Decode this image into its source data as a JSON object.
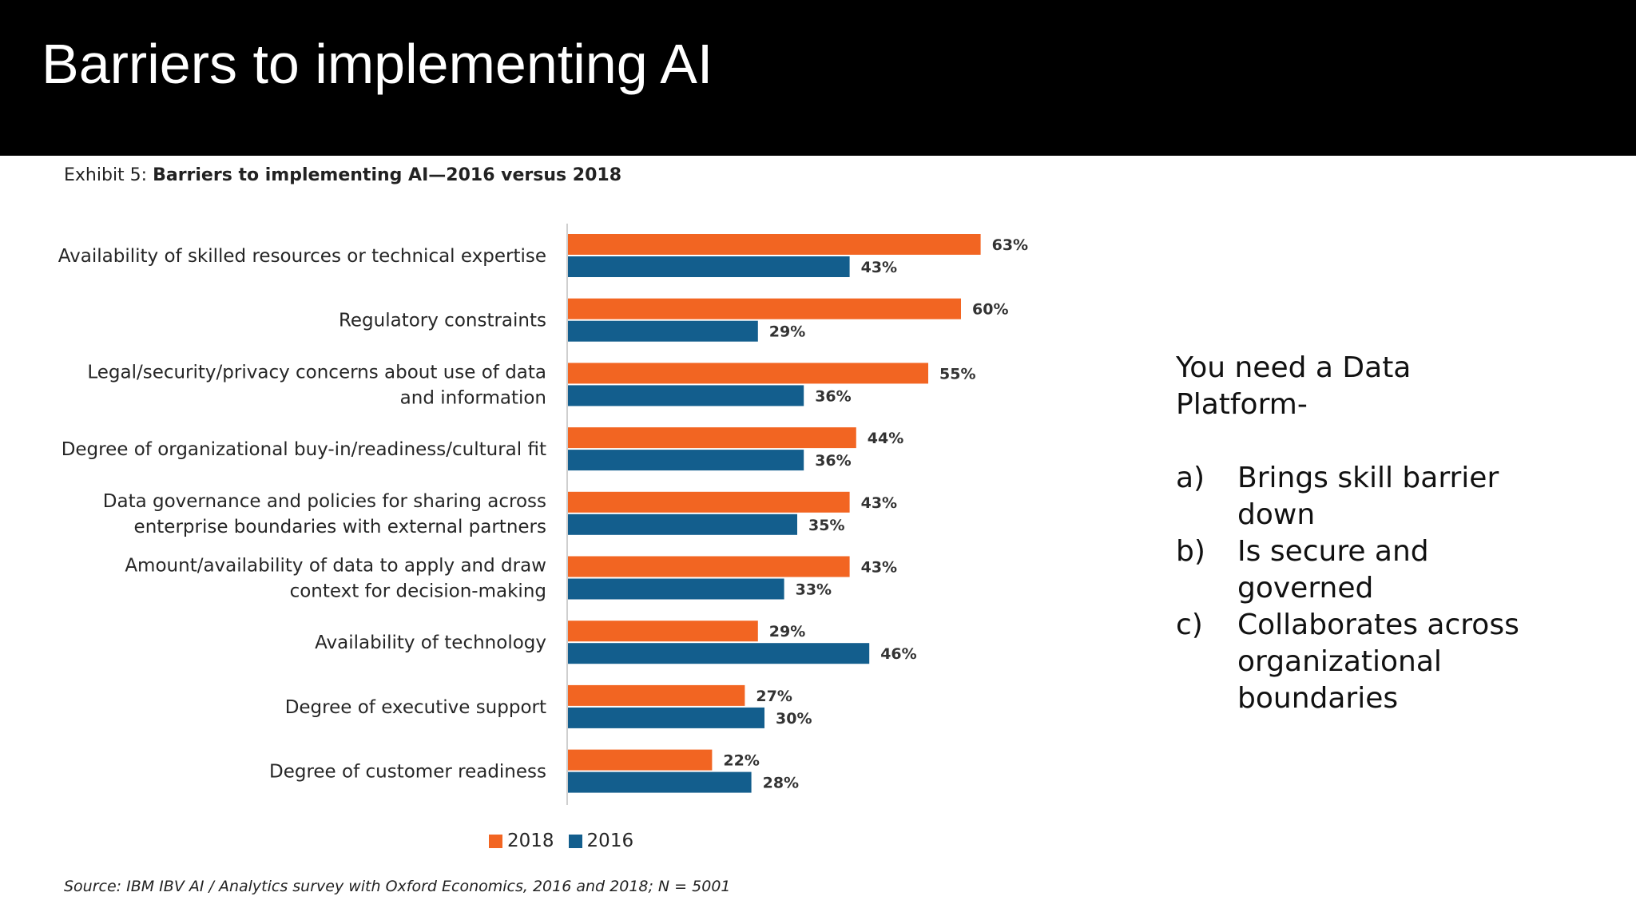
{
  "slide": {
    "title": "Barriers to implementing AI"
  },
  "exhibit": {
    "prefix": "Exhibit 5: ",
    "title": "Barriers to implementing AI—2016 versus 2018"
  },
  "source": "Source: IBM IBV AI / Analytics survey with Oxford Economics, 2016 and 2018; N = 5001",
  "colors": {
    "series_2018": "#f26522",
    "series_2016": "#135e8d"
  },
  "side_panel": {
    "heading": "You need a Data Platform-",
    "items": [
      {
        "marker": "a)",
        "text": "Brings skill barrier down"
      },
      {
        "marker": "b)",
        "text": "Is secure and governed"
      },
      {
        "marker": "c)",
        "text": "Collaborates across organizational boundaries"
      }
    ]
  },
  "chart_data": {
    "type": "bar",
    "orientation": "horizontal",
    "title": "Barriers to implementing AI—2016 versus 2018",
    "categories": [
      [
        "Availability of skilled resources or technical expertise"
      ],
      [
        "Regulatory constraints"
      ],
      [
        "Legal/security/privacy concerns about use of data",
        "and information"
      ],
      [
        "Degree of organizational buy-in/readiness/cultural fit"
      ],
      [
        "Data governance and policies for sharing across",
        "enterprise boundaries with external partners"
      ],
      [
        "Amount/availability of data to apply and draw",
        "context for decision-making"
      ],
      [
        "Availability of technology"
      ],
      [
        "Degree of executive support"
      ],
      [
        "Degree of customer readiness"
      ]
    ],
    "series": [
      {
        "name": "2018",
        "values": [
          63,
          60,
          55,
          44,
          43,
          43,
          29,
          27,
          22
        ]
      },
      {
        "name": "2016",
        "values": [
          43,
          29,
          36,
          36,
          35,
          33,
          46,
          30,
          28
        ]
      }
    ],
    "value_suffix": "%",
    "xlim": [
      0,
      100
    ],
    "grid": false,
    "legend": {
      "placement": "bottom",
      "entries": [
        "2018",
        "2016"
      ]
    }
  }
}
